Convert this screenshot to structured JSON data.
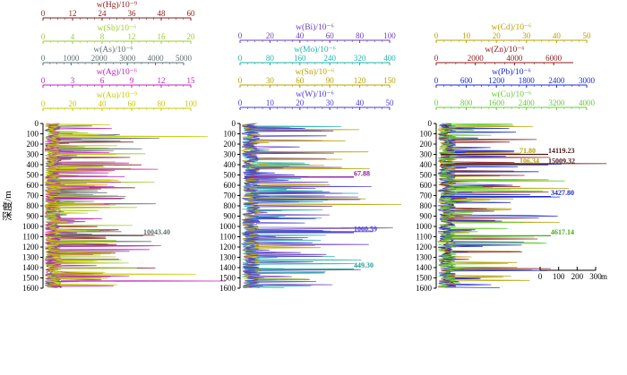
{
  "chart_data": [
    {
      "type": "line",
      "panel": "left",
      "orientation": "vertical-depth",
      "ylabel": "深度/m",
      "y_ticks": [
        0,
        100,
        200,
        300,
        400,
        500,
        600,
        700,
        800,
        900,
        1000,
        1100,
        1200,
        1300,
        1400,
        1500,
        1600
      ],
      "ylim": [
        0,
        1600
      ],
      "axes": [
        {
          "label": "w(Hg)/10⁻⁹",
          "color": "#8b1a1a",
          "ticks": [
            0,
            12,
            24,
            36,
            48,
            60
          ],
          "range": [
            0,
            60
          ]
        },
        {
          "label": "w(Sb)/10⁻⁶",
          "color": "#9acd32",
          "ticks": [
            0,
            4,
            8,
            12,
            16,
            20
          ],
          "range": [
            0,
            20
          ]
        },
        {
          "label": "w(As)/10⁻⁶",
          "color": "#5f6f6f",
          "ticks": [
            0,
            1000,
            2000,
            3000,
            4000,
            5000
          ],
          "range": [
            0,
            5000
          ]
        },
        {
          "label": "w(Ag)/10⁻⁶",
          "color": "#c020c0",
          "ticks": [
            0,
            3,
            6,
            9,
            12,
            15
          ],
          "range": [
            0,
            15
          ]
        },
        {
          "label": "w(Au)/10⁻⁹",
          "color": "#c8c800",
          "ticks": [
            0,
            20,
            40,
            60,
            80,
            100
          ],
          "range": [
            0,
            100
          ]
        }
      ],
      "annotations": [
        {
          "text": "10043.40",
          "depth": 1090,
          "color": "#5f6f6f"
        }
      ]
    },
    {
      "type": "line",
      "panel": "middle",
      "orientation": "vertical-depth",
      "y_ticks": [
        0,
        100,
        200,
        300,
        400,
        500,
        600,
        700,
        800,
        900,
        1000,
        1100,
        1200,
        1300,
        1400,
        1500,
        1600
      ],
      "ylim": [
        0,
        1600
      ],
      "axes": [
        {
          "label": "w(Bi)/10⁻⁶",
          "color": "#6a3db8",
          "ticks": [
            0,
            20,
            40,
            60,
            80,
            100
          ],
          "range": [
            0,
            100
          ]
        },
        {
          "label": "w(Mo)/10⁻⁶",
          "color": "#20b2aa",
          "ticks": [
            0,
            80,
            160,
            240,
            320,
            400
          ],
          "range": [
            0,
            400
          ]
        },
        {
          "label": "w(Sn)/10⁻⁶",
          "color": "#b8a000",
          "ticks": [
            0,
            30,
            60,
            90,
            120,
            150
          ],
          "range": [
            0,
            150
          ]
        },
        {
          "label": "w(W)/10⁻⁶",
          "color": "#4a3bd0",
          "ticks": [
            0,
            10,
            20,
            30,
            40,
            50
          ],
          "range": [
            0,
            50
          ]
        }
      ],
      "annotations": [
        {
          "text": "67.88",
          "depth": 520,
          "color": "#8a1aa0"
        },
        {
          "text": "1060.59",
          "depth": 1060,
          "color": "#4a3bd0"
        },
        {
          "text": "449.30",
          "depth": 1415,
          "color": "#20a0a0"
        }
      ]
    },
    {
      "type": "line",
      "panel": "right",
      "orientation": "vertical-depth",
      "y_ticks": [
        0,
        100,
        200,
        300,
        400,
        500,
        600,
        700,
        800,
        900,
        1000,
        1100,
        1200,
        1300,
        1400,
        1500,
        1600
      ],
      "ylim": [
        0,
        1600
      ],
      "axes": [
        {
          "label": "w(Cd)/10⁻⁶",
          "color": "#b8a000",
          "ticks": [
            0,
            10,
            20,
            30,
            40,
            50
          ],
          "range": [
            0,
            50
          ]
        },
        {
          "label": "w(Zn)/10⁻⁶",
          "color": "#8b1a1a",
          "ticks": [
            0,
            2000,
            4000,
            6000
          ],
          "range": [
            0,
            7000
          ]
        },
        {
          "label": "w(Pb)/10⁻⁶",
          "color": "#1a2ad0",
          "ticks": [
            0,
            600,
            1200,
            1800,
            2400,
            3000
          ],
          "range": [
            0,
            3000
          ]
        },
        {
          "label": "w(Cu)/10⁻⁶",
          "color": "#66cc33",
          "ticks": [
            0,
            800,
            1600,
            2400,
            3200,
            4000
          ],
          "range": [
            0,
            4000
          ]
        }
      ],
      "annotations": [
        {
          "text": "71.80",
          "depth": 300,
          "color": "#b8a000"
        },
        {
          "text": "14119.23",
          "depth": 300,
          "color": "#4a1a1a"
        },
        {
          "text": "106.34",
          "depth": 400,
          "color": "#b8a000"
        },
        {
          "text": "15009.32",
          "depth": 400,
          "color": "#4a1a1a"
        },
        {
          "text": "3427.80",
          "depth": 710,
          "color": "#1a2ad0"
        },
        {
          "text": "4617.14",
          "depth": 1090,
          "color": "#44aa22"
        }
      ],
      "scale_bar": {
        "labels": [
          "0",
          "100",
          "200",
          "300"
        ],
        "unit": "m"
      }
    }
  ],
  "colors": {
    "Hg": "#8b1a1a",
    "Sb": "#9acd32",
    "As": "#5f6f6f",
    "Ag": "#c020c0",
    "Au": "#c8c800",
    "Bi": "#6a3db8",
    "Mo": "#20b2aa",
    "Sn": "#b8a000",
    "W": "#4a3bd0",
    "Cd": "#b8a000",
    "Zn": "#3a0a0a",
    "Pb": "#1a2ad0",
    "Cu": "#66cc33"
  }
}
